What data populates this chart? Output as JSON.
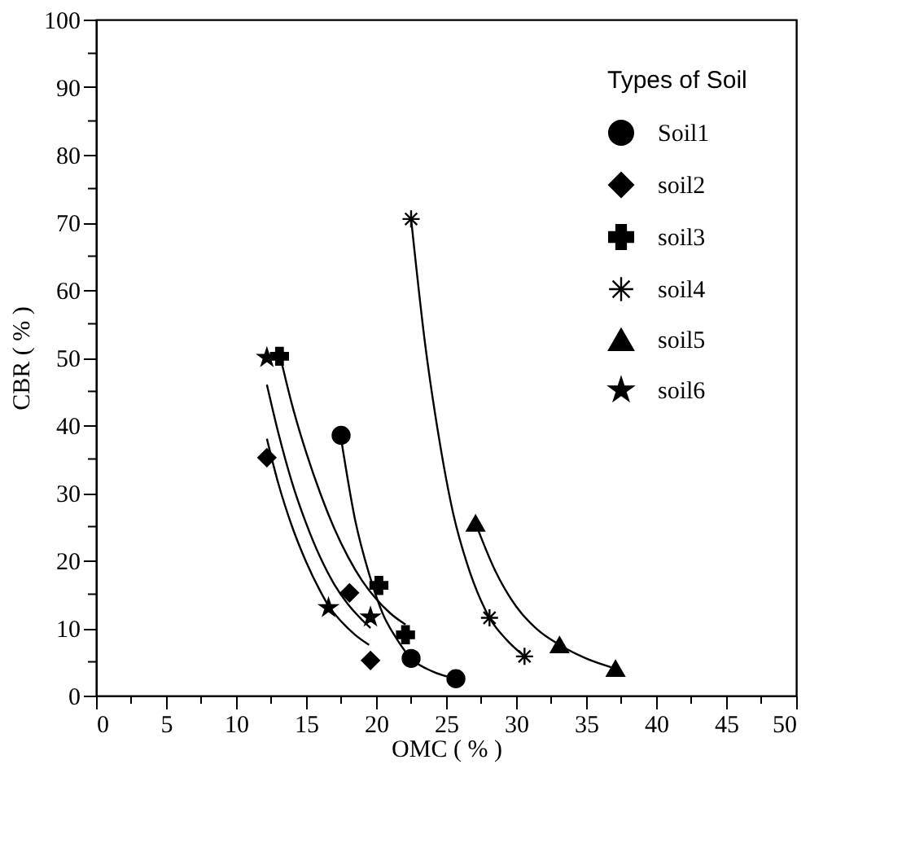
{
  "chart_data": {
    "type": "scatter",
    "xlabel": "OMC ( % )",
    "ylabel": "CBR ( % )",
    "legend_title": "Types of Soil",
    "legend": "top right",
    "grid": false,
    "xlim": [
      0,
      50
    ],
    "ylim": [
      0,
      100
    ],
    "xticks": [
      0,
      {
        "value": 2.5,
        "label": null
      },
      5,
      {
        "value": 7.5,
        "label": null
      },
      10,
      {
        "value": 12.5,
        "label": null
      },
      15,
      {
        "value": 17.5,
        "label": null
      },
      20,
      {
        "value": 22.5,
        "label": null
      },
      25,
      {
        "value": 27.5,
        "label": null
      },
      30,
      {
        "value": 32.5,
        "label": null
      },
      35,
      {
        "value": 37.5,
        "label": null
      },
      40,
      {
        "value": 42.5,
        "label": null
      },
      45,
      {
        "value": 47.5,
        "label": null
      },
      50
    ],
    "yticks": [
      0,
      {
        "value": 5,
        "label": null
      },
      10,
      {
        "value": 15,
        "label": null
      },
      20,
      {
        "value": 25,
        "label": null
      },
      30,
      {
        "value": 35,
        "label": null
      },
      40,
      {
        "value": 45,
        "label": null
      },
      50,
      {
        "value": 55,
        "label": null
      },
      60,
      {
        "value": 65,
        "label": null
      },
      70,
      {
        "value": 75,
        "label": null
      },
      80,
      {
        "value": 85,
        "label": null
      },
      90,
      {
        "value": 95,
        "label": null
      },
      100
    ],
    "series": [
      {
        "type": "line",
        "color": "#000000",
        "x": [
          17.5,
          18.5,
          19.5,
          20.5,
          21.5,
          22.5,
          24,
          25.7
        ],
        "values": [
          38,
          26,
          18,
          12,
          8.3,
          5.5,
          3.6,
          2.5
        ]
      },
      {
        "type": "line",
        "color": "#000000",
        "x": [
          12.2,
          13,
          14,
          15,
          16,
          16.6,
          17.5,
          18.5,
          19.5
        ],
        "values": [
          38,
          31.5,
          25,
          19.8,
          15.5,
          13.3,
          11,
          9,
          7.5
        ]
      },
      {
        "type": "line",
        "color": "#000000",
        "x": [
          13,
          14,
          15,
          16,
          17,
          18,
          19,
          20,
          21,
          22.1
        ],
        "values": [
          51.5,
          43,
          36,
          30,
          24.8,
          20.5,
          17,
          14.3,
          12.2,
          10.5
        ]
      },
      {
        "type": "line",
        "color": "#000000",
        "x": [
          22.5,
          23.5,
          24.5,
          25.5,
          26.5,
          27.5,
          28.1,
          29.3,
          30.6
        ],
        "values": [
          70.5,
          52,
          38,
          27,
          19.5,
          14,
          11.5,
          8.3,
          5.8
        ]
      },
      {
        "type": "line",
        "color": "#000000",
        "x": [
          27.1,
          28.5,
          30,
          31.5,
          33.1,
          35,
          37.1
        ],
        "values": [
          25.5,
          18.5,
          13.2,
          9.8,
          7.5,
          5.5,
          4
        ]
      },
      {
        "type": "line",
        "color": "#000000",
        "x": [
          12.2,
          13,
          14,
          15,
          16,
          17,
          18,
          19,
          19.6
        ],
        "values": [
          46,
          39,
          31.5,
          25.5,
          20.5,
          16.5,
          13.5,
          11.2,
          10
        ]
      },
      {
        "name": "Soil1",
        "color": "#000000",
        "marker": "circle",
        "x": [
          17.5,
          22.5,
          25.7
        ],
        "values": [
          38.5,
          5.5,
          2.5
        ]
      },
      {
        "name": "soil2",
        "color": "#000000",
        "marker": "diamond",
        "x": [
          12.2,
          18.1,
          19.6
        ],
        "values": [
          35.2,
          15.2,
          5.2
        ]
      },
      {
        "name": "soil3",
        "color": "#000000",
        "marker": "cross",
        "x": [
          13.1,
          20.2,
          22.1
        ],
        "values": [
          50.2,
          16.3,
          9
        ]
      },
      {
        "name": "soil4",
        "color": "#000000",
        "x": [
          22.5,
          28.1,
          30.6
        ],
        "values": [
          70.5,
          11.5,
          5.8
        ]
      },
      {
        "name": "soil5",
        "color": "#000000",
        "marker": "triangle",
        "x": [
          27.1,
          33.1,
          37.1
        ],
        "values": [
          25.5,
          7.5,
          4
        ]
      },
      {
        "name": "soil6",
        "color": "#000000",
        "marker": "star",
        "x": [
          12.2,
          16.6,
          19.6
        ],
        "values": [
          50,
          13,
          11.6
        ]
      }
    ]
  }
}
